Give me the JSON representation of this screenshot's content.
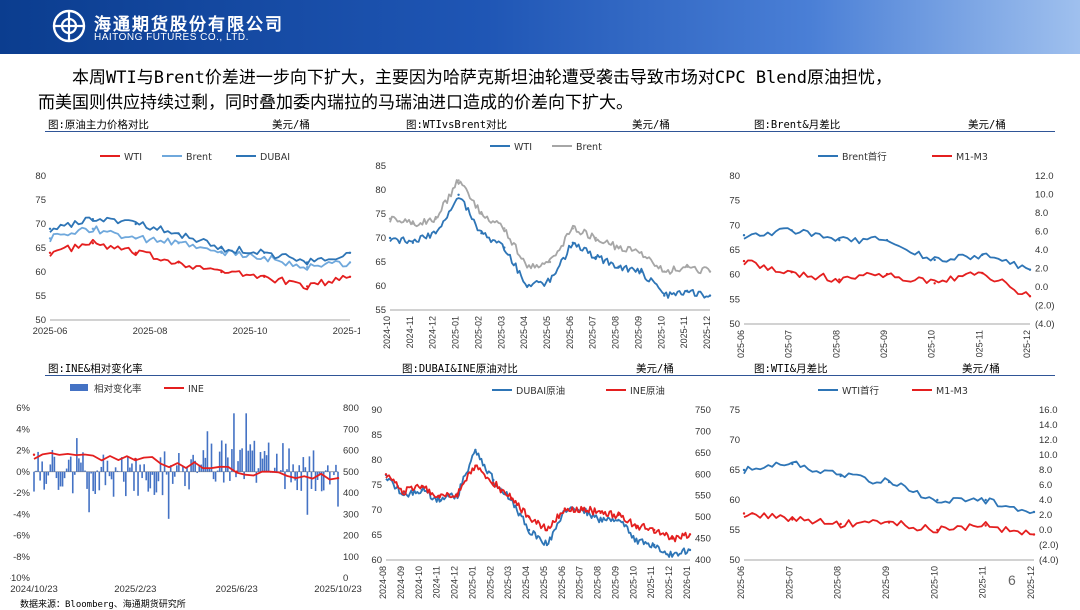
{
  "header": {
    "logo_cn": "海通期货股份有限公司",
    "logo_en": "HAITONG FUTURES CO., LTD."
  },
  "summary": {
    "line1": "本周WTI与Brent价差进一步向下扩大，主要因为哈萨克斯坦油轮遭受袭击导致市场对CPC Blend原油担忧，",
    "line2": "而美国则供应持续过剩，同时叠加委内瑞拉的马瑞油进口造成的价差向下扩大。"
  },
  "captions": {
    "c1": {
      "title": "图:原油主力价格对比",
      "unit": "美元/桶"
    },
    "c2": {
      "title": "图:WTIvsBrent对比",
      "unit": "美元/桶"
    },
    "c3": {
      "title": "图:Brent&月差比",
      "unit": "美元/桶"
    },
    "c4": {
      "title": "图:INE&相对变化率",
      "unit": ""
    },
    "c5": {
      "title": "图:DUBAI&INE原油对比",
      "unit": "美元/桶"
    },
    "c6": {
      "title": "图:WTI&月差比",
      "unit": "美元/桶"
    }
  },
  "source": "数据来源：Bloomberg、海通期货研究所",
  "page_number": "6",
  "colors": {
    "blue": "#2e75b6",
    "red": "#e41f1f",
    "lightblue": "#6fa8dc",
    "gray": "#a6a6a6",
    "bar": "#4472c4"
  },
  "chart_data": [
    {
      "id": "c1",
      "type": "line",
      "legend": "top",
      "x": [
        "2025-06",
        "2025-07",
        "2025-08",
        "2025-09",
        "2025-10",
        "2025-11",
        "2025-12",
        "2025-12-20"
      ],
      "series": [
        {
          "name": "WTI",
          "color": "#e41f1f",
          "values": [
            64,
            66,
            64,
            62,
            60,
            59,
            57,
            59
          ]
        },
        {
          "name": "Brent",
          "color": "#6fa8dc",
          "values": [
            67,
            69,
            67,
            66,
            64,
            63,
            61,
            62
          ]
        },
        {
          "name": "DUBAI",
          "color": "#2e75b6",
          "values": [
            69,
            71,
            70,
            68,
            65,
            64,
            62,
            64
          ]
        }
      ],
      "ylim": [
        50,
        80
      ],
      "yticks": [
        "50",
        "55",
        "60",
        "65",
        "70",
        "75",
        "80"
      ],
      "xticks": [
        "2025-06",
        "2025-08",
        "2025-10",
        "2025-12"
      ]
    },
    {
      "id": "c2",
      "type": "line",
      "legend": "top",
      "x": [
        "2024-10",
        "2024-11",
        "2024-12",
        "2025-01",
        "2025-02",
        "2025-03",
        "2025-04",
        "2025-05",
        "2025-06",
        "2025-07",
        "2025-08",
        "2025-09",
        "2025-10",
        "2025-11",
        "2025-12"
      ],
      "series": [
        {
          "name": "WTI",
          "color": "#2e75b6",
          "values": [
            70,
            69,
            71,
            79,
            71,
            68,
            60,
            61,
            69,
            66,
            64,
            63,
            58,
            59,
            58
          ]
        },
        {
          "name": "Brent",
          "color": "#a6a6a6",
          "values": [
            74,
            73,
            74,
            82,
            75,
            72,
            64,
            65,
            72,
            70,
            68,
            67,
            63,
            64,
            63
          ]
        }
      ],
      "ylim": [
        55,
        85
      ],
      "yticks": [
        "55",
        "60",
        "65",
        "70",
        "75",
        "80",
        "85"
      ],
      "xticks": [
        "2024-10",
        "2024-11",
        "2024-12",
        "2025-01",
        "2025-02",
        "2025-03",
        "2025-04",
        "2025-05",
        "2025-06",
        "2025-07",
        "2025-08",
        "2025-09",
        "2025-10",
        "2025-11",
        "2025-12"
      ]
    },
    {
      "id": "c3",
      "type": "line",
      "legend": "top",
      "x": [
        "2025-06",
        "2025-07",
        "2025-08",
        "2025-09",
        "2025-10",
        "2025-11",
        "2025-12"
      ],
      "series": [
        {
          "name": "Brent首行",
          "color": "#2e75b6",
          "axis": "left",
          "values": [
            68,
            69,
            67,
            67,
            63,
            64,
            61
          ]
        },
        {
          "name": "M1-M3",
          "color": "#e41f1f",
          "axis": "right",
          "values": [
            2.8,
            1.6,
            0.8,
            1.4,
            0.4,
            1.5,
            -1.0
          ]
        }
      ],
      "ylim": [
        50,
        80
      ],
      "yticks": [
        "50",
        "55",
        "60",
        "65",
        "70",
        "75",
        "80"
      ],
      "y2lim": [
        -4,
        12
      ],
      "y2ticks": [
        "(4.0)",
        "(2.0)",
        "0.0",
        "2.0",
        "4.0",
        "6.0",
        "8.0",
        "10.0",
        "12.0"
      ],
      "xticks": [
        "2025-06",
        "2025-07",
        "2025-08",
        "2025-09",
        "2025-10",
        "2025-11",
        "2025-12"
      ]
    },
    {
      "id": "c4",
      "type": "bar+line",
      "legend": "top",
      "x": [
        "2024/10/23",
        "2025/2/23",
        "2025/6/23",
        "2025/10/23"
      ],
      "series": [
        {
          "name": "相对变化率",
          "color": "#4472c4",
          "axis": "left",
          "values": [
            0.2,
            -0.6,
            1.2,
            -0.5
          ]
        },
        {
          "name": "INE",
          "color": "#e41f1f",
          "axis": "right",
          "values": [
            580,
            560,
            500,
            470
          ]
        }
      ],
      "ylim": [
        -10,
        6
      ],
      "yticks": [
        "-10%",
        "-8%",
        "-6%",
        "-4%",
        "-2%",
        "0%",
        "2%",
        "4%",
        "6%"
      ],
      "y2lim": [
        0,
        800
      ],
      "y2ticks": [
        "0",
        "100",
        "200",
        "300",
        "400",
        "500",
        "600",
        "700",
        "800"
      ],
      "xticks": [
        "2024/10/23",
        "2025/2/23",
        "2025/6/23",
        "2025/10/23"
      ]
    },
    {
      "id": "c5",
      "type": "line",
      "legend": "top",
      "x": [
        "2024-08",
        "2024-09",
        "2024-10",
        "2024-11",
        "2024-12",
        "2025-01",
        "2025-02",
        "2025-03",
        "2025-04",
        "2025-05",
        "2025-06",
        "2025-07",
        "2025-08",
        "2025-09",
        "2025-10",
        "2025-11",
        "2025-12",
        "2026-01"
      ],
      "series": [
        {
          "name": "DUBAI原油",
          "color": "#2e75b6",
          "axis": "left",
          "values": [
            77,
            73,
            74,
            72,
            73,
            82,
            76,
            72,
            66,
            63,
            70,
            70,
            68,
            68,
            64,
            63,
            61,
            62
          ]
        },
        {
          "name": "INE原油",
          "color": "#e41f1f",
          "axis": "right",
          "values": [
            600,
            560,
            570,
            550,
            555,
            620,
            580,
            545,
            500,
            470,
            520,
            520,
            510,
            505,
            480,
            470,
            450,
            460
          ]
        }
      ],
      "ylim": [
        60,
        90
      ],
      "yticks": [
        "60",
        "65",
        "70",
        "75",
        "80",
        "85",
        "90"
      ],
      "y2lim": [
        400,
        750
      ],
      "y2ticks": [
        "400",
        "450",
        "500",
        "550",
        "600",
        "650",
        "700",
        "750"
      ],
      "xticks": [
        "2024-08",
        "2024-09",
        "2024-10",
        "2024-11",
        "2024-12",
        "2025-01",
        "2025-02",
        "2025-03",
        "2025-04",
        "2025-05",
        "2025-06",
        "2025-07",
        "2025-08",
        "2025-09",
        "2025-10",
        "2025-11",
        "2025-12",
        "2026-01"
      ]
    },
    {
      "id": "c6",
      "type": "line",
      "legend": "top",
      "x": [
        "2025-06",
        "2025-07",
        "2025-08",
        "2025-09",
        "2025-10",
        "2025-11",
        "2025-12"
      ],
      "series": [
        {
          "name": "WTI首行",
          "color": "#2e75b6",
          "axis": "left",
          "values": [
            65,
            66,
            64,
            63,
            60,
            60,
            58
          ]
        },
        {
          "name": "M1-M3",
          "color": "#e41f1f",
          "axis": "right",
          "values": [
            2.2,
            1.4,
            0.8,
            1.0,
            0.0,
            0.6,
            -0.6
          ]
        }
      ],
      "ylim": [
        50,
        75
      ],
      "yticks": [
        "50",
        "55",
        "60",
        "65",
        "70",
        "75"
      ],
      "y2lim": [
        -4,
        16
      ],
      "y2ticks": [
        "(4.0)",
        "(2.0)",
        "0.0",
        "2.0",
        "4.0",
        "6.0",
        "8.0",
        "10.0",
        "12.0",
        "14.0",
        "16.0"
      ],
      "xticks": [
        "2025-06",
        "2025-07",
        "2025-08",
        "2025-09",
        "2025-10",
        "2025-11",
        "2025-12"
      ]
    }
  ]
}
